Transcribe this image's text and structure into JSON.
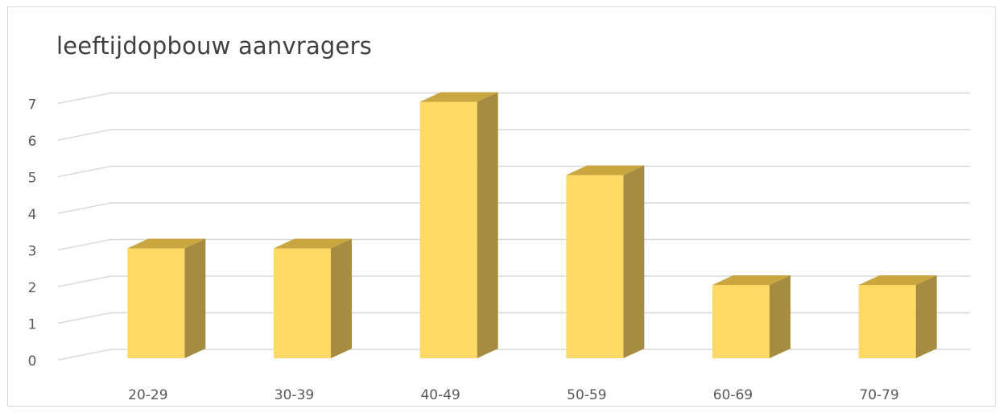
{
  "chart_data": {
    "type": "bar",
    "title": "leeftijdopbouw aanvragers",
    "categories": [
      "20-29",
      "30-39",
      "40-49",
      "50-59",
      "60-69",
      "70-79"
    ],
    "values": [
      3,
      3,
      7,
      5,
      2,
      2
    ],
    "ylim": [
      0,
      7
    ],
    "yticks": [
      0,
      1,
      2,
      3,
      4,
      5,
      6,
      7
    ],
    "xlabel": "",
    "ylabel": "",
    "grid": true,
    "three_d": true,
    "legend": "none",
    "colors": {
      "front": "#FFD966",
      "side": "#A68C40",
      "top": "#C9A640",
      "grid": "#D9D9D9"
    }
  }
}
